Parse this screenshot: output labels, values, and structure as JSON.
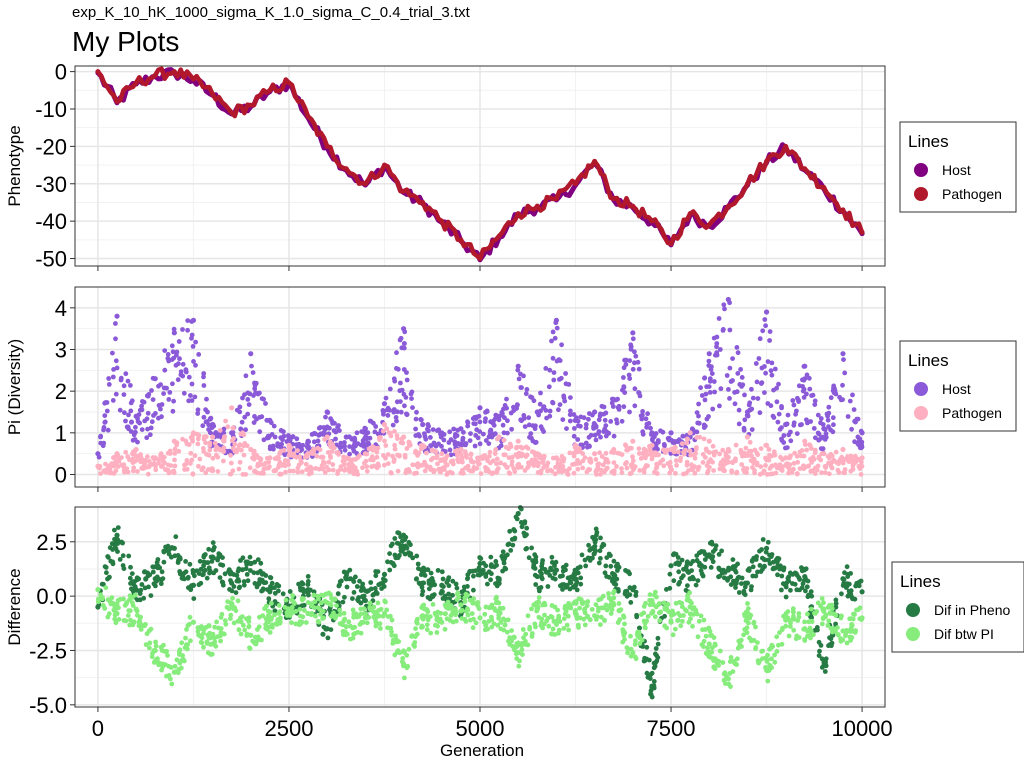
{
  "header": {
    "subtitle": "exp_K_10_hK_1000_sigma_K_1.0_sigma_C_0.4_trial_3.txt",
    "title": "My Plots"
  },
  "x_axis": {
    "label": "Generation",
    "ticks": [
      0,
      2500,
      5000,
      7500,
      10000
    ],
    "tick_labels": [
      "0",
      "2500",
      "5000",
      "7500",
      "10000"
    ],
    "range": [
      -300,
      10300
    ]
  },
  "chart_data": [
    {
      "type": "line",
      "title": "My Plots",
      "ylabel": "Phenotype",
      "ylim": [
        -52,
        1.5
      ],
      "y_ticks": [
        0,
        -10,
        -20,
        -30,
        -40,
        -50
      ],
      "y_tick_labels": [
        "0",
        "-10",
        "-20",
        "-30",
        "-40",
        "-50"
      ],
      "grid": true,
      "legend": {
        "title": "Lines",
        "placement": "right",
        "entries": [
          "Host",
          "Pathogen"
        ]
      },
      "series": [
        {
          "name": "Host",
          "color": "#800080",
          "x": [
            0,
            250,
            500,
            750,
            1000,
            1250,
            1500,
            1750,
            2000,
            2250,
            2500,
            2750,
            3000,
            3250,
            3500,
            3750,
            4000,
            4250,
            4500,
            4750,
            5000,
            5250,
            5500,
            5750,
            6000,
            6250,
            6500,
            6750,
            7000,
            7250,
            7500,
            7750,
            8000,
            8250,
            8500,
            8750,
            9000,
            9250,
            9500,
            9750,
            10000
          ],
          "values": [
            0,
            -8,
            -3,
            -1,
            0,
            -2,
            -6,
            -11,
            -9,
            -5,
            -3,
            -12,
            -20,
            -26,
            -30,
            -25,
            -32,
            -35,
            -40,
            -45,
            -50,
            -44,
            -38,
            -36,
            -34,
            -30,
            -24,
            -34,
            -36,
            -40,
            -46,
            -38,
            -41,
            -36,
            -30,
            -24,
            -20,
            -26,
            -31,
            -37,
            -43
          ]
        },
        {
          "name": "Pathogen",
          "color": "#b2182b",
          "x": [
            0,
            250,
            500,
            750,
            1000,
            1250,
            1500,
            1750,
            2000,
            2250,
            2500,
            2750,
            3000,
            3250,
            3500,
            3750,
            4000,
            4250,
            4500,
            4750,
            5000,
            5250,
            5500,
            5750,
            6000,
            6250,
            6500,
            6750,
            7000,
            7250,
            7500,
            7750,
            8000,
            8250,
            8500,
            8750,
            9000,
            9250,
            9500,
            9750,
            10000
          ],
          "values": [
            0,
            -8,
            -3,
            -1,
            0,
            -2,
            -6,
            -11,
            -9,
            -5,
            -3,
            -12,
            -20,
            -26,
            -30,
            -25,
            -32,
            -35,
            -40,
            -45,
            -50,
            -44,
            -38,
            -36,
            -34,
            -30,
            -24,
            -34,
            -36,
            -40,
            -46,
            -38,
            -41,
            -36,
            -30,
            -24,
            -20,
            -26,
            -31,
            -37,
            -43
          ]
        }
      ]
    },
    {
      "type": "scatter",
      "ylabel": "Pi (Diversity)",
      "ylim": [
        -0.3,
        4.5
      ],
      "y_ticks": [
        0,
        1,
        2,
        3,
        4
      ],
      "y_tick_labels": [
        "0",
        "1",
        "2",
        "3",
        "4"
      ],
      "grid": true,
      "legend": {
        "title": "Lines",
        "placement": "right",
        "entries": [
          "Host",
          "Pathogen"
        ]
      },
      "series": [
        {
          "name": "Host",
          "color": "#8a5ad8",
          "x": [
            0,
            250,
            500,
            750,
            1000,
            1250,
            1500,
            1750,
            2000,
            2250,
            2500,
            2750,
            3000,
            3250,
            3500,
            3750,
            4000,
            4250,
            4500,
            4750,
            5000,
            5250,
            5500,
            5750,
            6000,
            6250,
            6500,
            6750,
            7000,
            7250,
            7500,
            7750,
            8000,
            8250,
            8500,
            8750,
            9000,
            9250,
            9500,
            9750,
            10000
          ],
          "values": [
            0.5,
            3.8,
            1.4,
            2.3,
            3.4,
            3.7,
            1.2,
            1.0,
            2.9,
            1.3,
            0.9,
            0.8,
            1.5,
            0.9,
            1.1,
            1.7,
            3.5,
            1.2,
            1.0,
            1.1,
            1.6,
            1.4,
            2.6,
            1.5,
            3.7,
            1.3,
            1.5,
            1.8,
            3.4,
            1.0,
            1.0,
            0.9,
            2.9,
            4.2,
            1.5,
            3.9,
            1.2,
            2.6,
            1.1,
            2.9,
            1.0
          ]
        },
        {
          "name": "Pathogen",
          "color": "#ffb0c0",
          "x": [
            0,
            250,
            500,
            750,
            1000,
            1250,
            1500,
            1750,
            2000,
            2250,
            2500,
            2750,
            3000,
            3250,
            3500,
            3750,
            4000,
            4250,
            4500,
            4750,
            5000,
            5250,
            5500,
            5750,
            6000,
            6250,
            6500,
            6750,
            7000,
            7250,
            7500,
            7750,
            8000,
            8250,
            8500,
            8750,
            9000,
            9250,
            9500,
            9750,
            10000
          ],
          "values": [
            0.2,
            0.5,
            0.6,
            0.4,
            0.8,
            1.0,
            0.9,
            1.6,
            0.6,
            0.4,
            0.7,
            0.5,
            0.9,
            0.4,
            0.5,
            1.2,
            0.9,
            0.7,
            0.5,
            0.6,
            0.4,
            0.9,
            0.8,
            0.5,
            0.4,
            0.7,
            0.5,
            0.6,
            0.8,
            0.7,
            0.6,
            1.0,
            0.8,
            0.6,
            0.9,
            0.7,
            0.4,
            0.8,
            0.5,
            0.6,
            0.4
          ]
        }
      ]
    },
    {
      "type": "scatter",
      "ylabel": "Difference",
      "ylim": [
        -5.1,
        4.1
      ],
      "y_ticks": [
        2.5,
        0,
        -2.5,
        -5
      ],
      "y_tick_labels": [
        "2.5",
        "0.0",
        "-2.5",
        "-5.0"
      ],
      "grid": true,
      "legend": {
        "title": "Lines",
        "placement": "right",
        "entries": [
          "Dif in Pheno",
          "Dif btw PI"
        ]
      },
      "series": [
        {
          "name": "Dif in Pheno",
          "color": "#267a43",
          "x": [
            0,
            250,
            500,
            750,
            1000,
            1250,
            1500,
            1750,
            2000,
            2250,
            2500,
            2750,
            3000,
            3250,
            3500,
            3750,
            4000,
            4250,
            4500,
            4750,
            5000,
            5250,
            5500,
            5750,
            6000,
            6250,
            6500,
            6750,
            7000,
            7250,
            7500,
            7750,
            8000,
            8250,
            8500,
            8750,
            9000,
            9250,
            9500,
            9750,
            10000
          ],
          "values": [
            -0.5,
            2.8,
            0.3,
            0.8,
            2.2,
            0.5,
            1.8,
            0.6,
            1.5,
            0.2,
            -0.5,
            0.3,
            -1.5,
            0.8,
            -0.2,
            1.0,
            2.8,
            0.6,
            0.5,
            -0.3,
            1.5,
            0.8,
            3.8,
            0.9,
            1.2,
            0.5,
            2.6,
            1.0,
            0.3,
            -4.2,
            1.4,
            0.8,
            1.9,
            1.2,
            0.6,
            2.2,
            0.5,
            0.9,
            -3.2,
            0.8,
            0.2
          ]
        },
        {
          "name": "Dif btw PI",
          "color": "#86ec7c",
          "x": [
            0,
            250,
            500,
            750,
            1000,
            1250,
            1500,
            1750,
            2000,
            2250,
            2500,
            2750,
            3000,
            3250,
            3500,
            3750,
            4000,
            4250,
            4500,
            4750,
            5000,
            5250,
            5500,
            5750,
            6000,
            6250,
            6500,
            6750,
            7000,
            7250,
            7500,
            7750,
            8000,
            8250,
            8500,
            8750,
            9000,
            9250,
            9500,
            9750,
            10000
          ],
          "values": [
            0.3,
            -0.8,
            -0.6,
            -2.5,
            -3.5,
            -1.2,
            -2.2,
            -0.4,
            -1.8,
            -1.0,
            -0.6,
            -0.8,
            -0.3,
            -1.4,
            -1.0,
            -0.8,
            -3.2,
            -0.9,
            -1.2,
            -0.4,
            -1.0,
            -0.7,
            -2.6,
            -0.6,
            -1.2,
            -0.8,
            -0.9,
            -0.4,
            -2.6,
            -0.2,
            -1.2,
            -0.5,
            -2.2,
            -3.8,
            -1.0,
            -3.4,
            -1.1,
            -1.5,
            -0.7,
            -1.6,
            -1.0
          ]
        }
      ]
    }
  ]
}
